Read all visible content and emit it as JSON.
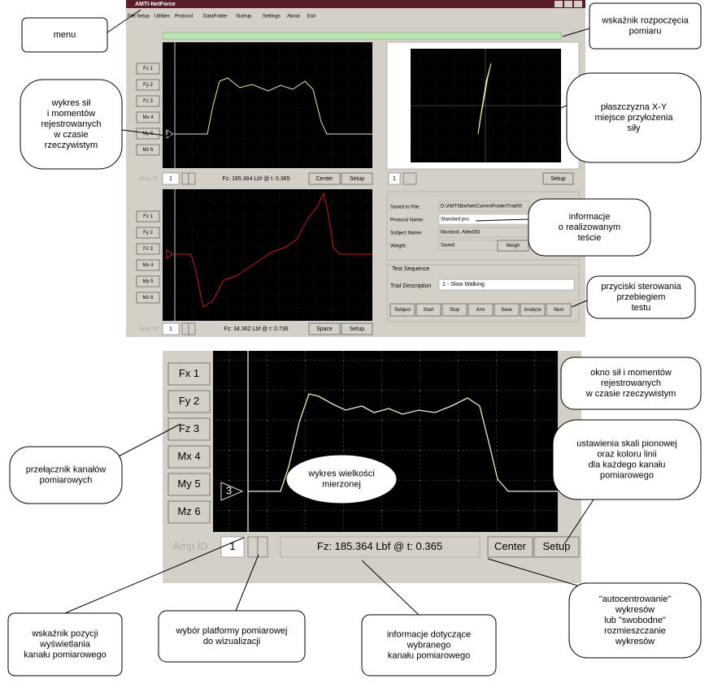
{
  "window": {
    "title": "AMTI-NetForce",
    "menu": [
      "File",
      "Setup",
      "Utilities",
      "Protocol",
      "DataFolder",
      "Startup",
      "Settings",
      "About",
      "Exit"
    ],
    "channels": [
      "Fx 1",
      "Fy 2",
      "Fz 3",
      "Mx 4",
      "My 5",
      "Mz 6"
    ],
    "plot1": {
      "marker": "3",
      "amp_label": "Amp ID",
      "amp_id": "1",
      "readout": "Fz: 185.364 Lbf @ t: 0.365",
      "left_button": "Center",
      "right_button": "Setup"
    },
    "plot2": {
      "amp_label": "Amp ID",
      "amp_id": "1",
      "readout": "Fz: 34.362 Lbf @ t: 0.736",
      "left_button": "Space",
      "right_button": "Setup"
    },
    "xy": {
      "amp_id": "1",
      "button": "Setup"
    },
    "info": {
      "labels": [
        "Saved to File:",
        "Protocol Name:",
        "Subject Name:",
        "Weight:"
      ],
      "values": [
        "D:\\AMTI\\BioNet\\CurrentFolder\\Trial00",
        "Standard.pro",
        "Murdock, Allied3D",
        "Saved"
      ],
      "weigh_button": "Weigh"
    },
    "test": {
      "group": "Test Sequence",
      "label": "Trial Description",
      "value": "1 - Slow Walking",
      "buttons": [
        "Subject",
        "Start",
        "Stop",
        "Arm",
        "Save",
        "Analyze",
        "Next"
      ]
    }
  },
  "zoom": {
    "marker": "3",
    "amp_label": "Amp ID",
    "amp_id": "1",
    "readout": "Fz: 185.364 Lbf @ t: 0.365",
    "left_button": "Center",
    "right_button": "Setup"
  },
  "callouts": [
    [
      "menu"
    ],
    [
      "wskaźnik rozpoczęcia",
      "pomiaru"
    ],
    [
      "wykres sił",
      "i momentów",
      "rejestrowanych",
      "w czasie",
      "rzeczywistym"
    ],
    [
      "płaszczyzna X-Y",
      "miejsce przyłożenia",
      "siły"
    ],
    [
      "informacje",
      "o realizowanym",
      "teście"
    ],
    [
      "przyciski sterowania",
      "przebiegiem",
      "testu"
    ],
    [
      "okno sił i momentów",
      "rejestrowanych",
      "w czasie rzeczywistym"
    ],
    [
      "ustawienia skali pionowej",
      "oraz koloru linii",
      "dla każdego kanału",
      "pomiarowego"
    ],
    [
      "przełącznik kanałów",
      "pomiarowych"
    ],
    [
      "wykres wielkości",
      "mierzonej"
    ],
    [
      "wskaźnik pozycji",
      "wyświetlania",
      "kanału pomiarowego"
    ],
    [
      "wybór platformy pomiarowej",
      "do wizualizacji"
    ],
    [
      "informacje dotyczące",
      "wybranego",
      "kanału pomiarowego"
    ],
    [
      "\"autocentrowanie\"",
      "wykresów",
      "lub \"swobodne\"",
      "rozmieszczanie",
      "wykresów"
    ]
  ]
}
